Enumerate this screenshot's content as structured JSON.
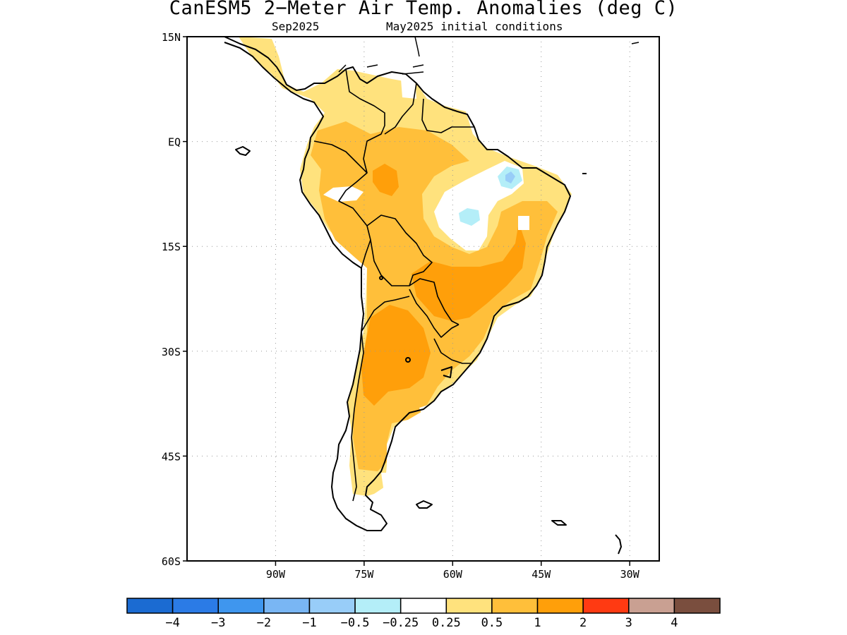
{
  "header": {
    "title": "CanESM5 2−Meter Air Temp. Anomalies (deg C)",
    "forecast_month": "Sep2025",
    "initial_conditions": "May2025 initial conditions"
  },
  "map": {
    "region": "South America",
    "projection": "lat-lon",
    "lon_range": [
      -105,
      -25
    ],
    "lat_range": [
      -60,
      15
    ],
    "lat_ticks": [
      "15N",
      "EQ",
      "15S",
      "30S",
      "45S",
      "60S"
    ],
    "lon_ticks": [
      "90W",
      "75W",
      "60W",
      "45W",
      "30W"
    ],
    "grid": "dotted"
  },
  "legend": {
    "labels": [
      "−4",
      "−3",
      "−2",
      "−1",
      "−0.5",
      "−0.25",
      "0.25",
      "0.5",
      "1",
      "2",
      "3",
      "4"
    ],
    "colors": [
      "#1b6bd2",
      "#2b7be6",
      "#3f96ee",
      "#79b6f4",
      "#98cdf8",
      "#b4eef8",
      "#ffffff",
      "#ffe27d",
      "#ffbf3a",
      "#ff9f0a",
      "#ff3a12",
      "#c9a092",
      "#7a4e3e"
    ]
  }
}
